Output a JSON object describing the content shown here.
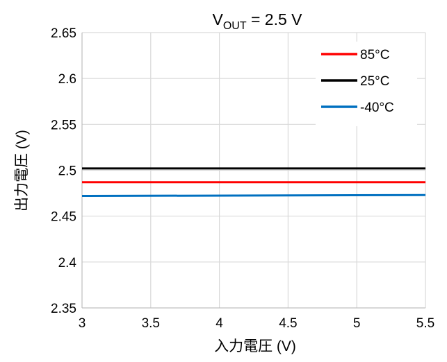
{
  "chart_data": {
    "type": "line",
    "title_main": "V",
    "title_sub": "OUT",
    "title_rest": " = 2.5 V",
    "xlabel": "入力電圧 (V)",
    "ylabel": "出力電圧 (V)",
    "xlim": [
      3,
      5.5
    ],
    "ylim": [
      2.35,
      2.65
    ],
    "x_ticks": [
      "3",
      "3.5",
      "4",
      "4.5",
      "5",
      "5.5"
    ],
    "y_ticks": [
      "2.35",
      "2.4",
      "2.45",
      "2.5",
      "2.55",
      "2.6",
      "2.65"
    ],
    "grid": true,
    "legend_position": "top-right",
    "series": [
      {
        "name": "85°C",
        "color": "#ff0000",
        "x": [
          3,
          5.5
        ],
        "y": [
          2.487,
          2.487
        ]
      },
      {
        "name": "25°C",
        "color": "#000000",
        "x": [
          3,
          5.5
        ],
        "y": [
          2.502,
          2.502
        ]
      },
      {
        "name": "-40°C",
        "color": "#0070c0",
        "x": [
          3,
          5.5
        ],
        "y": [
          2.472,
          2.473
        ]
      }
    ]
  }
}
